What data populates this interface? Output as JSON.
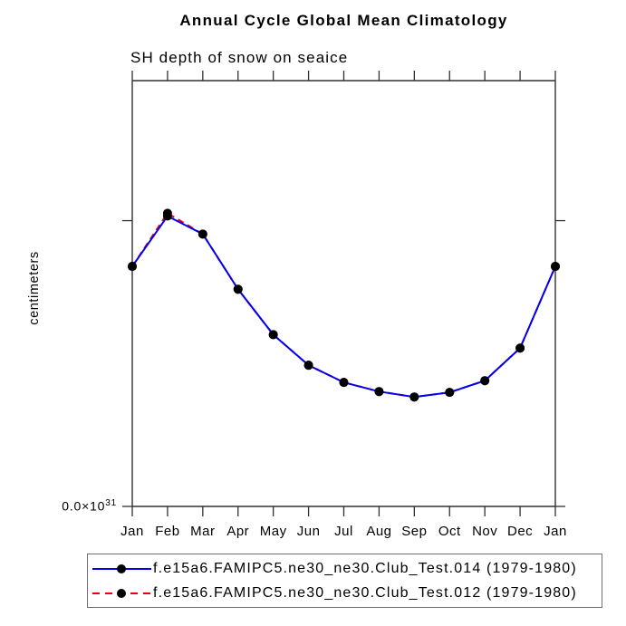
{
  "chart_data": {
    "type": "line",
    "title": "Annual Cycle Global Mean Climatology",
    "subtitle": "SH depth of snow on seaice",
    "ylabel": "centimeters",
    "categories": [
      "Jan",
      "Feb",
      "Mar",
      "Apr",
      "May",
      "Jun",
      "Jul",
      "Aug",
      "Sep",
      "Oct",
      "Nov",
      "Dec",
      "Jan"
    ],
    "series": [
      {
        "name": "f.e15a6.FAMIPC5.ne30_ne30.Club_Test.014 (1979-1980)",
        "color": "#0000ee",
        "line_style": "solid",
        "values": [
          0.84,
          1.016,
          0.953,
          0.76,
          0.601,
          0.494,
          0.434,
          0.402,
          0.383,
          0.399,
          0.44,
          0.554,
          0.84
        ]
      },
      {
        "name": "f.e15a6.FAMIPC5.ne30_ne30.Club_Test.012 (1979-1980)",
        "color": "#ee0000",
        "line_style": "dashed",
        "values": [
          0.84,
          1.026,
          0.953,
          0.76,
          0.601,
          0.494,
          0.434,
          0.402,
          0.383,
          0.399,
          0.44,
          0.554,
          0.84
        ]
      }
    ],
    "marker": {
      "shape": "circle",
      "color": "#000000",
      "radius_px": 5
    },
    "ylim": [
      0,
      1.49
    ],
    "yticks": [
      0,
      1.0
    ],
    "y_tick_labels": [
      "0.0×10³¹",
      ""
    ],
    "y_scale_label": {
      "base": "0.0×10",
      "exponent": "31"
    },
    "grid": false,
    "legend_position": "bottom-center",
    "axis_color": "#303030",
    "text_color": "#000000"
  }
}
